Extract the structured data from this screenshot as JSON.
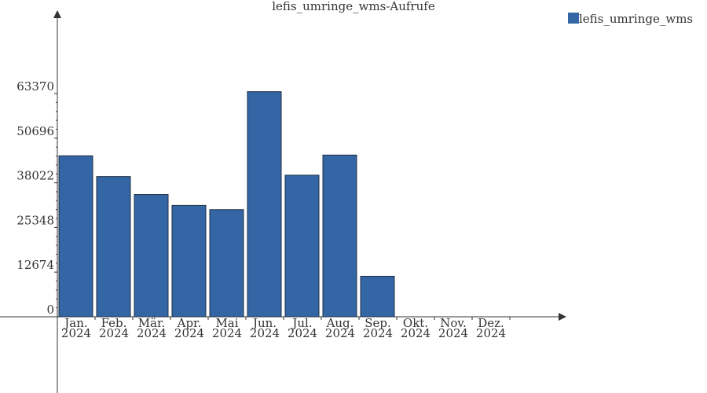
{
  "chart_data": {
    "type": "bar",
    "title": "lefis_umringe_wms-Aufrufe",
    "categories": [
      [
        "Jan.",
        "2024"
      ],
      [
        "Feb.",
        "2024"
      ],
      [
        "Mär.",
        "2024"
      ],
      [
        "Apr.",
        "2024"
      ],
      [
        "Mai",
        "2024"
      ],
      [
        "Jun.",
        "2024"
      ],
      [
        "Jul.",
        "2024"
      ],
      [
        "Aug.",
        "2024"
      ],
      [
        "Sep.",
        "2024"
      ],
      [
        "Okt.",
        "2024"
      ],
      [
        "Nov.",
        "2024"
      ],
      [
        "Dez.",
        "2024"
      ]
    ],
    "series": [
      {
        "name": "lefis_umringe_wms",
        "color": "#3465a4",
        "values": [
          45700,
          39800,
          34700,
          31600,
          30400,
          63900,
          40200,
          45900,
          11500,
          0,
          0,
          0
        ]
      }
    ],
    "y_ticks": [
      0,
      12674,
      25348,
      38022,
      50696,
      63370
    ],
    "ylim": [
      0,
      63370
    ],
    "grid": false,
    "legend_position": "top-right"
  }
}
